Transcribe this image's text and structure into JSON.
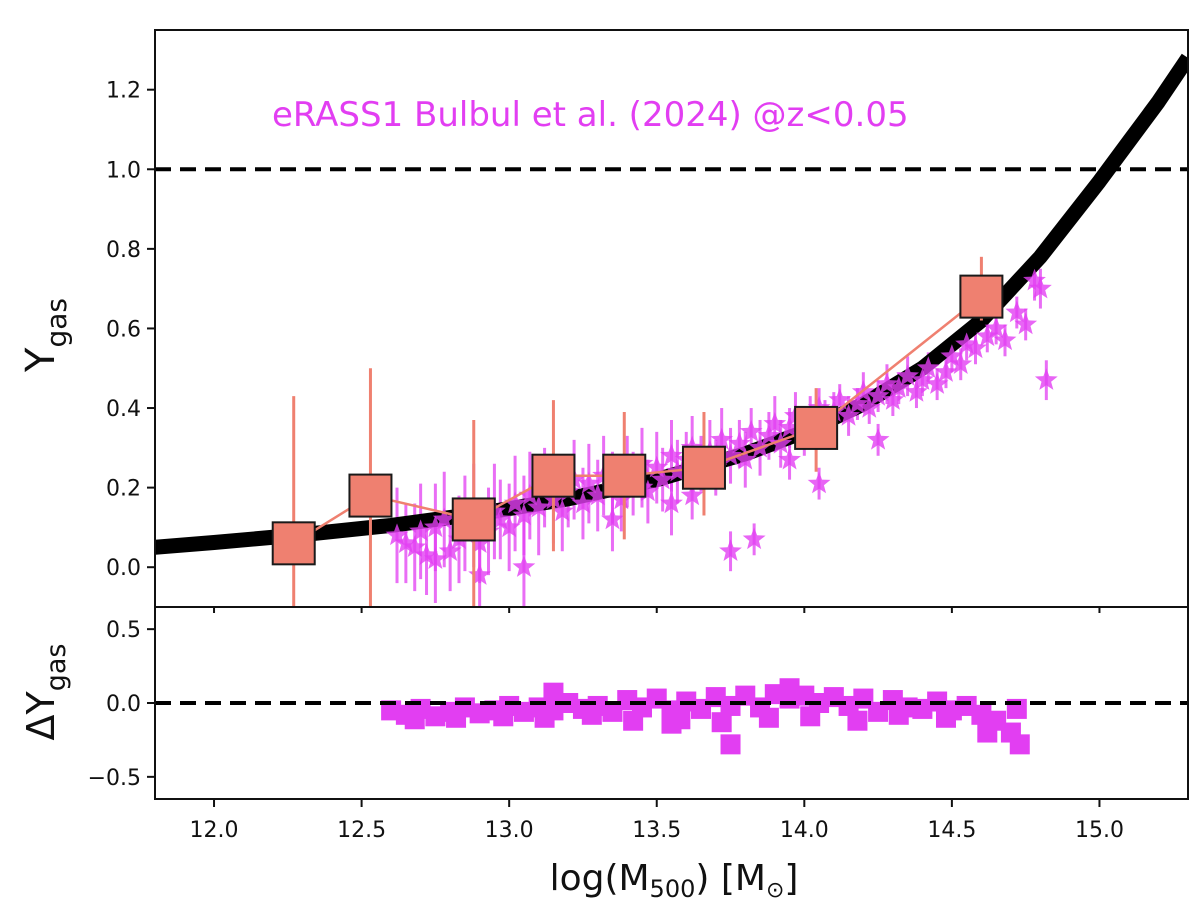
{
  "chart_data": {
    "type": "scatter",
    "colors": {
      "catalog": "#e23ef2",
      "binned": "#ef8070",
      "binned_edge": "#1a1a1a",
      "model": "#000000",
      "axes": "#111111"
    },
    "x_axis": {
      "label_main": "log(M",
      "label_sub": "500",
      "label_tail": ") [M",
      "label_symbol": "⊙",
      "label_end": "]",
      "xlim": [
        11.8,
        15.3
      ],
      "ticks": [
        12.0,
        12.5,
        13.0,
        13.5,
        14.0,
        14.5,
        15.0
      ],
      "tick_labels": [
        "12.0",
        "12.5",
        "13.0",
        "13.5",
        "14.0",
        "14.5",
        "15.0"
      ]
    },
    "top_panel": {
      "ylabel_main": "Y",
      "ylabel_sub": "gas",
      "ylim": [
        -0.1,
        1.35
      ],
      "yticks": [
        0.0,
        0.2,
        0.4,
        0.6,
        0.8,
        1.0,
        1.2
      ],
      "ytick_labels": [
        "0.0",
        "0.2",
        "0.4",
        "0.6",
        "0.8",
        "1.0",
        "1.2"
      ],
      "reference_line": 1.0,
      "annotation": "eRASS1 Bulbul et al. (2024) @z<0.05",
      "model_curve": {
        "x": [
          11.8,
          12.0,
          12.3,
          12.6,
          12.9,
          13.2,
          13.5,
          13.8,
          14.0,
          14.2,
          14.4,
          14.6,
          14.8,
          15.0,
          15.1,
          15.2,
          15.3
        ],
        "y": [
          0.05,
          0.062,
          0.082,
          0.105,
          0.135,
          0.172,
          0.22,
          0.285,
          0.34,
          0.41,
          0.5,
          0.62,
          0.78,
          0.97,
          1.07,
          1.17,
          1.28
        ]
      },
      "binned": {
        "x": [
          12.27,
          12.53,
          12.88,
          13.15,
          13.39,
          13.66,
          14.04,
          14.6
        ],
        "y": [
          0.06,
          0.18,
          0.12,
          0.23,
          0.23,
          0.25,
          0.35,
          0.68
        ],
        "err_lo": [
          0.3,
          0.3,
          0.25,
          0.19,
          0.16,
          0.12,
          0.11,
          0.06
        ],
        "err_hi": [
          0.37,
          0.32,
          0.25,
          0.19,
          0.16,
          0.14,
          0.1,
          0.1
        ]
      },
      "catalog": {
        "x": [
          12.62,
          12.65,
          12.68,
          12.7,
          12.72,
          12.75,
          12.78,
          12.8,
          12.83,
          12.85,
          12.88,
          12.9,
          12.93,
          12.95,
          12.97,
          13.0,
          13.02,
          13.05,
          13.07,
          13.1,
          13.12,
          13.15,
          13.18,
          13.2,
          13.22,
          13.25,
          13.27,
          13.3,
          13.32,
          13.35,
          13.38,
          13.4,
          13.42,
          13.45,
          13.47,
          13.5,
          13.52,
          13.55,
          13.57,
          13.6,
          13.62,
          13.65,
          13.68,
          13.7,
          13.72,
          13.75,
          13.78,
          13.8,
          13.82,
          13.85,
          13.88,
          13.9,
          13.92,
          13.95,
          13.97,
          14.0,
          14.02,
          14.05,
          14.07,
          14.1,
          14.12,
          14.15,
          14.18,
          14.2,
          14.22,
          14.25,
          14.28,
          14.3,
          14.32,
          14.35,
          14.38,
          14.4,
          14.42,
          14.45,
          14.48,
          14.5,
          14.53,
          14.55,
          14.58,
          14.62,
          14.65,
          14.68,
          14.72,
          14.75,
          14.78,
          14.8,
          14.82,
          13.75,
          13.83,
          14.25,
          14.05,
          13.95,
          13.45,
          13.62,
          13.05,
          12.9,
          12.75,
          13.35,
          13.55,
          14.6
        ],
        "y": [
          0.08,
          0.06,
          0.05,
          0.09,
          0.03,
          0.1,
          0.12,
          0.04,
          0.07,
          0.11,
          0.13,
          0.06,
          0.09,
          0.14,
          0.12,
          0.1,
          0.16,
          0.13,
          0.18,
          0.15,
          0.2,
          0.17,
          0.14,
          0.19,
          0.22,
          0.16,
          0.21,
          0.18,
          0.23,
          0.2,
          0.17,
          0.24,
          0.21,
          0.26,
          0.19,
          0.25,
          0.22,
          0.28,
          0.24,
          0.27,
          0.3,
          0.26,
          0.29,
          0.25,
          0.32,
          0.28,
          0.31,
          0.27,
          0.34,
          0.3,
          0.33,
          0.36,
          0.31,
          0.35,
          0.38,
          0.33,
          0.37,
          0.4,
          0.36,
          0.39,
          0.42,
          0.38,
          0.41,
          0.44,
          0.4,
          0.43,
          0.46,
          0.42,
          0.45,
          0.48,
          0.44,
          0.47,
          0.5,
          0.46,
          0.49,
          0.53,
          0.51,
          0.56,
          0.55,
          0.58,
          0.6,
          0.57,
          0.64,
          0.61,
          0.72,
          0.7,
          0.47,
          0.04,
          0.07,
          0.32,
          0.21,
          0.27,
          0.2,
          0.18,
          0.0,
          -0.02,
          0.02,
          0.12,
          0.16,
          0.66
        ],
        "err": [
          0.12,
          0.1,
          0.11,
          0.12,
          0.1,
          0.11,
          0.12,
          0.1,
          0.11,
          0.12,
          0.13,
          0.1,
          0.11,
          0.12,
          0.1,
          0.11,
          0.12,
          0.1,
          0.11,
          0.12,
          0.1,
          0.11,
          0.1,
          0.09,
          0.1,
          0.09,
          0.1,
          0.09,
          0.1,
          0.09,
          0.08,
          0.09,
          0.08,
          0.09,
          0.08,
          0.09,
          0.08,
          0.09,
          0.08,
          0.07,
          0.08,
          0.07,
          0.08,
          0.07,
          0.08,
          0.07,
          0.06,
          0.07,
          0.06,
          0.07,
          0.06,
          0.07,
          0.06,
          0.05,
          0.06,
          0.05,
          0.06,
          0.05,
          0.06,
          0.05,
          0.04,
          0.05,
          0.04,
          0.05,
          0.04,
          0.04,
          0.05,
          0.04,
          0.04,
          0.05,
          0.04,
          0.04,
          0.04,
          0.04,
          0.04,
          0.04,
          0.04,
          0.04,
          0.04,
          0.04,
          0.04,
          0.04,
          0.04,
          0.04,
          0.05,
          0.05,
          0.05,
          0.05,
          0.04,
          0.04,
          0.04,
          0.05,
          0.05,
          0.06,
          0.12,
          0.13,
          0.11,
          0.08,
          0.08,
          0.04
        ]
      }
    },
    "bottom_panel": {
      "ylabel_main": "ΔY",
      "ylabel_sub": "gas",
      "ylim": [
        -0.65,
        0.65
      ],
      "yticks": [
        -0.5,
        0.0,
        0.5
      ],
      "ytick_labels": [
        "−0.5",
        "0.0",
        "0.5"
      ],
      "reference_line": 0.0,
      "residuals": {
        "x": [
          12.6,
          12.65,
          12.7,
          12.75,
          12.8,
          12.85,
          12.9,
          12.95,
          13.0,
          13.05,
          13.1,
          13.15,
          13.2,
          13.25,
          13.3,
          13.35,
          13.4,
          13.45,
          13.5,
          13.55,
          13.6,
          13.65,
          13.7,
          13.75,
          13.8,
          13.85,
          13.9,
          13.95,
          14.0,
          14.05,
          14.1,
          14.15,
          14.2,
          14.25,
          14.3,
          14.35,
          14.4,
          14.45,
          14.5,
          14.55,
          14.6,
          14.65,
          14.7,
          14.72,
          12.68,
          12.82,
          12.98,
          13.12,
          13.28,
          13.42,
          13.58,
          13.72,
          13.88,
          14.02,
          14.18,
          14.32,
          14.48,
          13.75,
          14.73,
          14.62,
          13.15,
          13.55,
          13.95
        ],
        "y": [
          -0.05,
          -0.08,
          -0.04,
          -0.09,
          -0.06,
          -0.03,
          -0.07,
          -0.05,
          -0.02,
          -0.06,
          -0.03,
          -0.05,
          0.0,
          -0.04,
          -0.02,
          -0.06,
          0.02,
          -0.03,
          0.03,
          -0.05,
          0.01,
          -0.04,
          0.04,
          -0.02,
          0.05,
          -0.03,
          0.06,
          0.03,
          0.05,
          0.0,
          0.04,
          -0.02,
          0.03,
          -0.06,
          0.02,
          -0.03,
          -0.04,
          0.01,
          -0.05,
          -0.02,
          -0.08,
          -0.12,
          -0.2,
          -0.04,
          -0.11,
          -0.1,
          -0.09,
          -0.1,
          -0.08,
          -0.12,
          -0.11,
          -0.13,
          -0.1,
          -0.09,
          -0.12,
          -0.08,
          -0.1,
          -0.28,
          -0.28,
          -0.2,
          0.07,
          -0.14,
          0.1
        ]
      }
    }
  }
}
